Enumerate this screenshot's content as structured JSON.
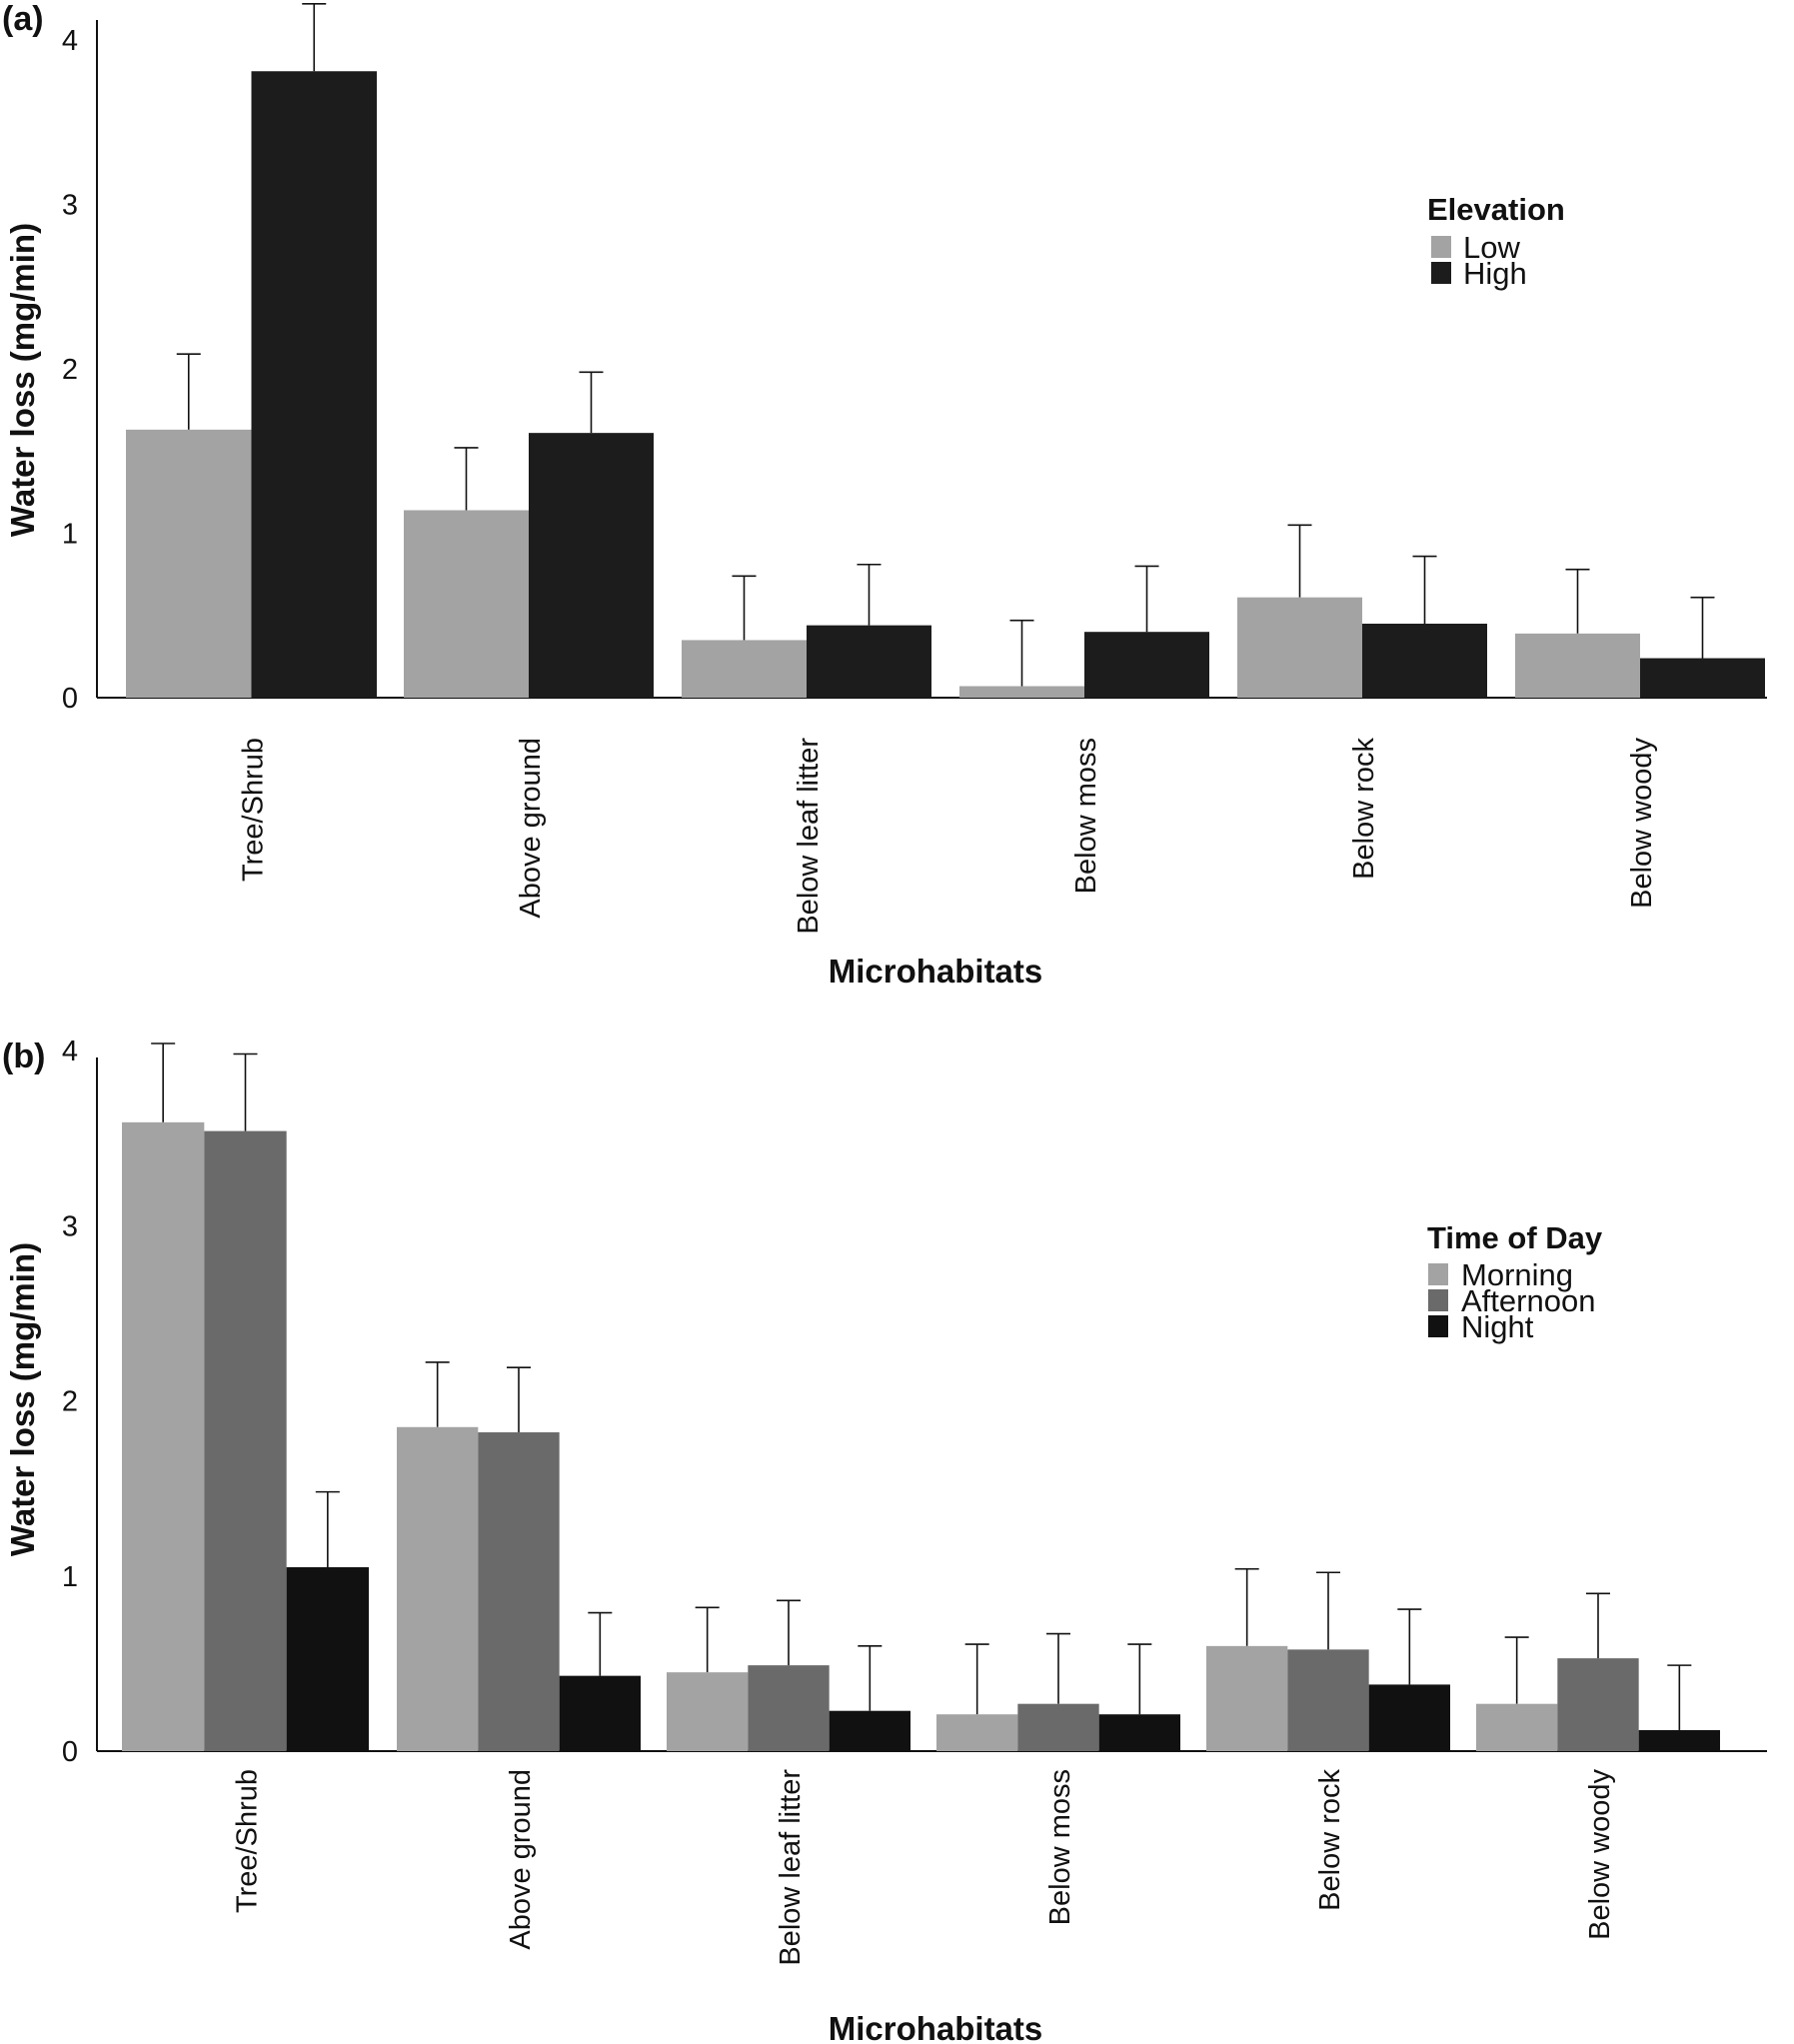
{
  "chart_data": [
    {
      "panel": "(a)",
      "type": "bar",
      "xlabel": "Microhabitats",
      "ylabel": "Water loss (mg/min)",
      "ylim": [
        0,
        4.2
      ],
      "yticks": [
        "0",
        "1",
        "2",
        "3",
        "4"
      ],
      "categories": [
        "Tree/Shrub",
        "Above ground",
        "Below leaf litter",
        "Below moss",
        "Below rock",
        "Below woody"
      ],
      "legend_title": "Elevation",
      "legend_position": "top-right",
      "series": [
        {
          "name": "Low",
          "color": "#a3a3a3",
          "values": [
            1.63,
            1.14,
            0.35,
            0.07,
            0.61,
            0.39
          ],
          "upper": [
            2.09,
            1.52,
            0.74,
            0.47,
            1.05,
            0.78
          ]
        },
        {
          "name": "High",
          "color": "#1c1c1c",
          "values": [
            3.81,
            1.61,
            0.44,
            0.4,
            0.45,
            0.24
          ],
          "upper": [
            4.22,
            1.98,
            0.81,
            0.8,
            0.86,
            0.61
          ]
        }
      ]
    },
    {
      "panel": "(b)",
      "type": "bar",
      "xlabel": "Microhabitats",
      "ylabel": "Water loss (mg/min)",
      "ylim": [
        0,
        4.1
      ],
      "yticks": [
        "0",
        "1",
        "2",
        "3",
        "4"
      ],
      "categories": [
        "Tree/Shrub",
        "Above ground",
        "Below leaf litter",
        "Below moss",
        "Below rock",
        "Below woody"
      ],
      "legend_title": "Time of Day",
      "legend_position": "top-right",
      "series": [
        {
          "name": "Morning",
          "color": "#a3a3a3",
          "values": [
            3.59,
            1.85,
            0.45,
            0.21,
            0.6,
            0.27
          ],
          "upper": [
            4.04,
            2.22,
            0.82,
            0.61,
            1.04,
            0.65
          ]
        },
        {
          "name": "Afternoon",
          "color": "#6a6a6a",
          "values": [
            3.54,
            1.82,
            0.49,
            0.27,
            0.58,
            0.53
          ],
          "upper": [
            3.98,
            2.19,
            0.86,
            0.67,
            1.02,
            0.9
          ]
        },
        {
          "name": "Night",
          "color": "#111111",
          "values": [
            1.05,
            0.43,
            0.23,
            0.21,
            0.38,
            0.12
          ],
          "upper": [
            1.48,
            0.79,
            0.6,
            0.61,
            0.81,
            0.49
          ]
        }
      ]
    }
  ]
}
